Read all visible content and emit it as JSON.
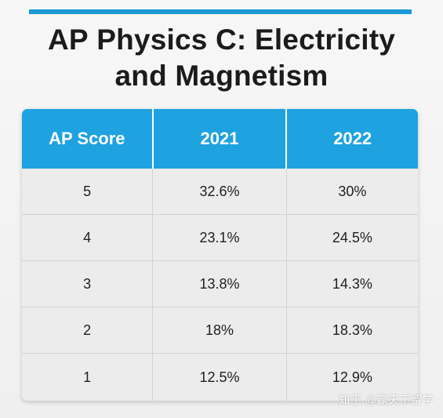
{
  "title": {
    "strong": "AP",
    "rest_line1": "Physics C: Electricity",
    "line2": "and Magnetism"
  },
  "table": {
    "headers": [
      "AP Score",
      "2021",
      "2022"
    ],
    "rows": [
      {
        "score": "5",
        "y2021": "32.6%",
        "y2022": "30%"
      },
      {
        "score": "4",
        "y2021": "23.1%",
        "y2022": "24.5%"
      },
      {
        "score": "3",
        "y2021": "13.8%",
        "y2022": "14.3%"
      },
      {
        "score": "2",
        "y2021": "18%",
        "y2022": "18.3%"
      },
      {
        "score": "1",
        "y2021": "12.5%",
        "y2022": "12.9%"
      }
    ]
  },
  "watermark": "知乎 @赢天下留学",
  "colors": {
    "accent": "#1a9ad6",
    "header_bg": "#1ea2e0",
    "table_bg": "#ececec"
  }
}
